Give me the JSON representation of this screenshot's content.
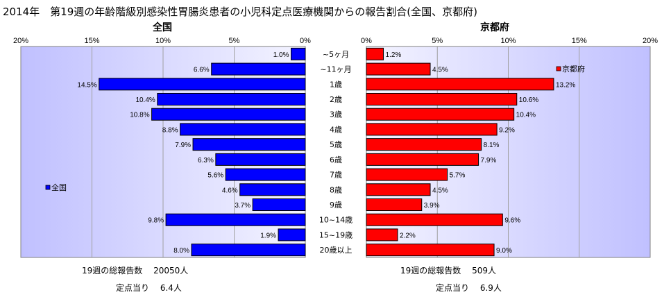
{
  "title": "2014年　第19週の年齢階級別感染性胃腸炎患者の小児科定点医療機関からの報告割合(全国、京都府)",
  "categories": [
    "~5ヶ月",
    "~11ヶ月",
    "1歳",
    "2歳",
    "3歳",
    "4歳",
    "5歳",
    "6歳",
    "7歳",
    "8歳",
    "9歳",
    "10~14歳",
    "15~19歳",
    "20歳以上"
  ],
  "chart_data": [
    {
      "type": "bar",
      "title": "全国",
      "orientation": "horizontal-reversed",
      "xlim": [
        0,
        20
      ],
      "x_ticks": [
        "20%",
        "15%",
        "10%",
        "5%",
        "0%"
      ],
      "grid": true,
      "legend_position": "left",
      "series": [
        {
          "name": "全国",
          "color": "#0000ff",
          "values": [
            1.0,
            6.6,
            14.5,
            10.4,
            10.8,
            8.8,
            7.9,
            6.3,
            5.6,
            4.6,
            3.7,
            9.8,
            1.9,
            8.0
          ],
          "labels": [
            "1.0%",
            "6.6%",
            "14.5%",
            "10.4%",
            "10.8%",
            "8.8%",
            "7.9%",
            "6.3%",
            "5.6%",
            "4.6%",
            "3.7%",
            "9.8%",
            "1.9%",
            "8.0%"
          ]
        }
      ]
    },
    {
      "type": "bar",
      "title": "京都府",
      "orientation": "horizontal",
      "xlim": [
        0,
        20
      ],
      "x_ticks": [
        "0%",
        "5%",
        "10%",
        "15%",
        "20%"
      ],
      "grid": true,
      "legend_position": "top-right",
      "series": [
        {
          "name": "京都府",
          "color": "#ff0000",
          "values": [
            1.2,
            4.5,
            13.2,
            10.6,
            10.4,
            9.2,
            8.1,
            7.9,
            5.7,
            4.5,
            3.9,
            9.6,
            2.2,
            9.0
          ],
          "labels": [
            "1.2%",
            "4.5%",
            "13.2%",
            "10.6%",
            "10.4%",
            "9.2%",
            "8.1%",
            "7.9%",
            "5.7%",
            "4.5%",
            "3.9%",
            "9.6%",
            "2.2%",
            "9.0%"
          ]
        }
      ]
    }
  ],
  "colors": {
    "plot_bg_edge": "#c0c0ff",
    "plot_bg_center": "#f4f4ff",
    "grid": "#a0a0a0"
  },
  "footer": {
    "national_total": "19週の総報告数　 20050人",
    "national_per": "定点当り　 6.4人",
    "kyoto_total": "19週の総報告数　 509人",
    "kyoto_per": "定点当り　 6.9人"
  }
}
